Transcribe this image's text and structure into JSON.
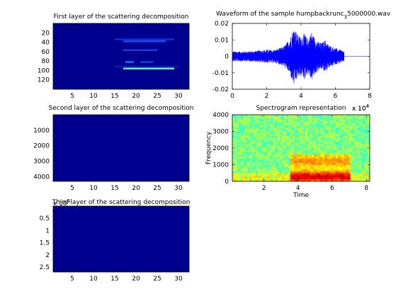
{
  "chart_data": [
    {
      "type": "heatmap",
      "title": "First layer of the scattering decomposition",
      "xlim": [
        0.5,
        32.5
      ],
      "ylim": [
        0,
        140
      ],
      "xticks": [
        5,
        10,
        15,
        20,
        25,
        30
      ],
      "yticks": [
        20,
        40,
        60,
        80,
        100,
        120
      ],
      "background_color": "#00008f",
      "highlights": [
        {
          "x": [
            17,
            29
          ],
          "y": 96,
          "color": "#6ff0ff"
        },
        {
          "x": [
            15,
            29
          ],
          "y": 34,
          "color": "#1030d0"
        },
        {
          "x": [
            17,
            27
          ],
          "y": 38,
          "color": "#1a4cff"
        },
        {
          "x": [
            17,
            25
          ],
          "y": 57,
          "color": "#1a3ce0"
        },
        {
          "x": [
            17.5,
            19.5
          ],
          "y": 82,
          "color": "#2a70ff"
        },
        {
          "x": [
            21,
            24
          ],
          "y": 82,
          "color": "#1a40e0"
        },
        {
          "x": [
            15,
            30
          ],
          "y": 92,
          "color": "#0c1fb0"
        }
      ]
    },
    {
      "type": "line",
      "title": "Waveform of the sample humpbackrunc",
      "title_subscript": "3",
      "title_tail": "5000000.wav",
      "xlim": [
        0,
        80000
      ],
      "ylim": [
        -0.02,
        0.02
      ],
      "xticks": [
        0,
        2,
        4,
        6,
        8
      ],
      "yticks": [
        0.02,
        0.01,
        0,
        -0.01,
        -0.02
      ],
      "ytick_labels": [
        "0.02",
        "0.01",
        "0",
        "-0.01",
        "-0.02"
      ],
      "x_exponent_base": "x 10",
      "x_exponent_power": "4",
      "signal_end": 65000,
      "envelope": [
        [
          0,
          0.003
        ],
        [
          10000,
          0.003
        ],
        [
          20000,
          0.004
        ],
        [
          25000,
          0.004
        ],
        [
          30000,
          0.006
        ],
        [
          33000,
          0.01
        ],
        [
          36000,
          0.018
        ],
        [
          38000,
          0.013
        ],
        [
          40000,
          0.012
        ],
        [
          42000,
          0.014
        ],
        [
          44000,
          0.01
        ],
        [
          46000,
          0.015
        ],
        [
          48000,
          0.011
        ],
        [
          50000,
          0.009
        ],
        [
          52000,
          0.008
        ],
        [
          54000,
          0.01
        ],
        [
          56000,
          0.007
        ],
        [
          60000,
          0.005
        ],
        [
          63000,
          0.004
        ],
        [
          65000,
          0.003
        ]
      ],
      "color": "#0000ff"
    },
    {
      "type": "heatmap",
      "title": "Second layer of the scattering decomposition",
      "xlim": [
        0.5,
        32.5
      ],
      "ylim": [
        0,
        4300
      ],
      "xticks": [
        5,
        10,
        15,
        20,
        25,
        30
      ],
      "yticks": [
        1000,
        2000,
        3000,
        4000
      ],
      "background_color": "#00008f"
    },
    {
      "type": "heatmap",
      "title": "Spectrogram representation",
      "xlim": [
        1500,
        82000
      ],
      "ylim": [
        0,
        4000
      ],
      "xticks": [
        2,
        4,
        6,
        8
      ],
      "yticks": [
        0,
        1000,
        2000,
        3000,
        4000
      ],
      "xlabel": "Time",
      "ylabel": "Frequency",
      "x_exponent_base": "x 10",
      "x_exponent_power": "4",
      "background_color": "#8be07a",
      "energy_region": {
        "x": [
          35000,
          70000
        ],
        "y": [
          0,
          1600
        ]
      }
    },
    {
      "type": "heatmap",
      "title": "Third layer of the scattering decomposition",
      "xlim": [
        0.5,
        32.5
      ],
      "ylim": [
        0,
        27000
      ],
      "xticks": [
        5,
        10,
        15,
        20,
        25,
        30
      ],
      "yticks": [
        5000,
        10000,
        15000,
        20000,
        25000
      ],
      "ytick_labels": [
        "0.5",
        "1",
        "1.5",
        "2",
        "2.5"
      ],
      "y_exponent_base": "x 10",
      "y_exponent_power": "4",
      "background_color": "#00008f"
    }
  ]
}
